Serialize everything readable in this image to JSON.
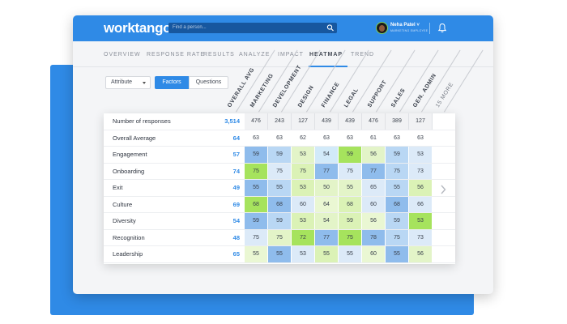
{
  "app": {
    "logo": "worktango",
    "search_placeholder": "Find a person...",
    "user_name": "Neha Patel ˅",
    "user_role": "MARKETING EMPLOYEE"
  },
  "nav": {
    "tabs": [
      {
        "label": "OVERVIEW"
      },
      {
        "label": "RESPONSE RATE"
      },
      {
        "label": "RESULTS"
      },
      {
        "label": "ANALYZE"
      },
      {
        "label": "IMPACT"
      },
      {
        "label": "HEATMAP"
      },
      {
        "label": "TREND"
      }
    ],
    "active_tab": "HEATMAP"
  },
  "filters": {
    "attribute_select": "Attribute",
    "segment_factors": "Factors",
    "segment_questions": "Questions",
    "active_segment": "Factors"
  },
  "heatmap": {
    "columns": [
      "OVERALL AVG",
      "MARKETING",
      "DEVELOPMENT",
      "DESIGN",
      "FINANCE",
      "LEGAL",
      "SUPPORT",
      "SALES",
      "GEN. ADMIN",
      "15 MORE"
    ],
    "rows": [
      {
        "label": "Number of responses",
        "total": "3,514",
        "values": [
          "476",
          "243",
          "127",
          "439",
          "439",
          "476",
          "389",
          "127"
        ],
        "kind": "header"
      },
      {
        "label": "Overall Average",
        "total": "64",
        "values": [
          "63",
          "63",
          "62",
          "63",
          "63",
          "61",
          "63",
          "63"
        ],
        "kind": "plain"
      },
      {
        "label": "Engagement",
        "total": "57",
        "values": [
          "59",
          "59",
          "53",
          "54",
          "59",
          "56",
          "59",
          "53"
        ],
        "kind": "heat"
      },
      {
        "label": "Onboarding",
        "total": "74",
        "values": [
          "75",
          "75",
          "75",
          "77",
          "75",
          "77",
          "75",
          "73"
        ],
        "kind": "heat"
      },
      {
        "label": "Exit",
        "total": "49",
        "values": [
          "55",
          "55",
          "53",
          "50",
          "55",
          "65",
          "55",
          "56"
        ],
        "kind": "heat"
      },
      {
        "label": "Culture",
        "total": "69",
        "values": [
          "68",
          "68",
          "60",
          "64",
          "68",
          "60",
          "68",
          "66"
        ],
        "kind": "heat"
      },
      {
        "label": "Diversity",
        "total": "54",
        "values": [
          "59",
          "59",
          "53",
          "54",
          "59",
          "56",
          "59",
          "53"
        ],
        "kind": "heat"
      },
      {
        "label": "Recognition",
        "total": "48",
        "values": [
          "75",
          "75",
          "72",
          "77",
          "75",
          "78",
          "75",
          "73"
        ],
        "kind": "heat"
      },
      {
        "label": "Leadership",
        "total": "65",
        "values": [
          "55",
          "55",
          "53",
          "55",
          "55",
          "60",
          "55",
          "56"
        ],
        "kind": "heat"
      }
    ],
    "colors": {
      "accent": "#2f8ae6",
      "strong_green": "#a6e35d",
      "light_green": "#dbf2b6",
      "pale_green": "#eaf7d3",
      "light_blue": "#b9d7f4",
      "mid_blue": "#8fbcec",
      "pale_blue": "#dceaf8",
      "header_gray": "#f1f2f4"
    },
    "cell_colors": [
      [
        "#f1f2f4",
        "#f1f2f4",
        "#f1f2f4",
        "#f1f2f4",
        "#f1f2f4",
        "#f1f2f4",
        "#f1f2f4",
        "#f1f2f4"
      ],
      [
        "#ffffff",
        "#ffffff",
        "#ffffff",
        "#ffffff",
        "#ffffff",
        "#ffffff",
        "#ffffff",
        "#ffffff"
      ],
      [
        "#8fbcec",
        "#b9d7f4",
        "#e3f4c8",
        "#d2eaf9",
        "#a6e35d",
        "#e3f4c8",
        "#b9d7f4",
        "#dceaf8"
      ],
      [
        "#a6e35d",
        "#dceaf8",
        "#dbf2b6",
        "#8fbcec",
        "#dceaf8",
        "#8fbcec",
        "#b9d7f4",
        "#dceaf8"
      ],
      [
        "#8fbcec",
        "#b9d7f4",
        "#dbf2b6",
        "#e3f4c8",
        "#e3f4c8",
        "#dceaf8",
        "#b9d7f4",
        "#dbf2b6"
      ],
      [
        "#a6e35d",
        "#8fbcec",
        "#dceaf8",
        "#eaf7d3",
        "#dbf2b6",
        "#dceaf8",
        "#8fbcec",
        "#dceaf8"
      ],
      [
        "#8fbcec",
        "#b9d7f4",
        "#dbf2b6",
        "#e3f4c8",
        "#dbf2b6",
        "#eaf7d3",
        "#b9d7f4",
        "#a6e35d"
      ],
      [
        "#dceaf8",
        "#e3f4c8",
        "#a6e35d",
        "#8fbcec",
        "#a6e35d",
        "#8fbcec",
        "#b9d7f4",
        "#dceaf8"
      ],
      [
        "#eaf7d3",
        "#8fbcec",
        "#dceaf8",
        "#dbf2b6",
        "#dceaf8",
        "#eaf7d3",
        "#8fbcec",
        "#e3f4c8"
      ]
    ]
  }
}
